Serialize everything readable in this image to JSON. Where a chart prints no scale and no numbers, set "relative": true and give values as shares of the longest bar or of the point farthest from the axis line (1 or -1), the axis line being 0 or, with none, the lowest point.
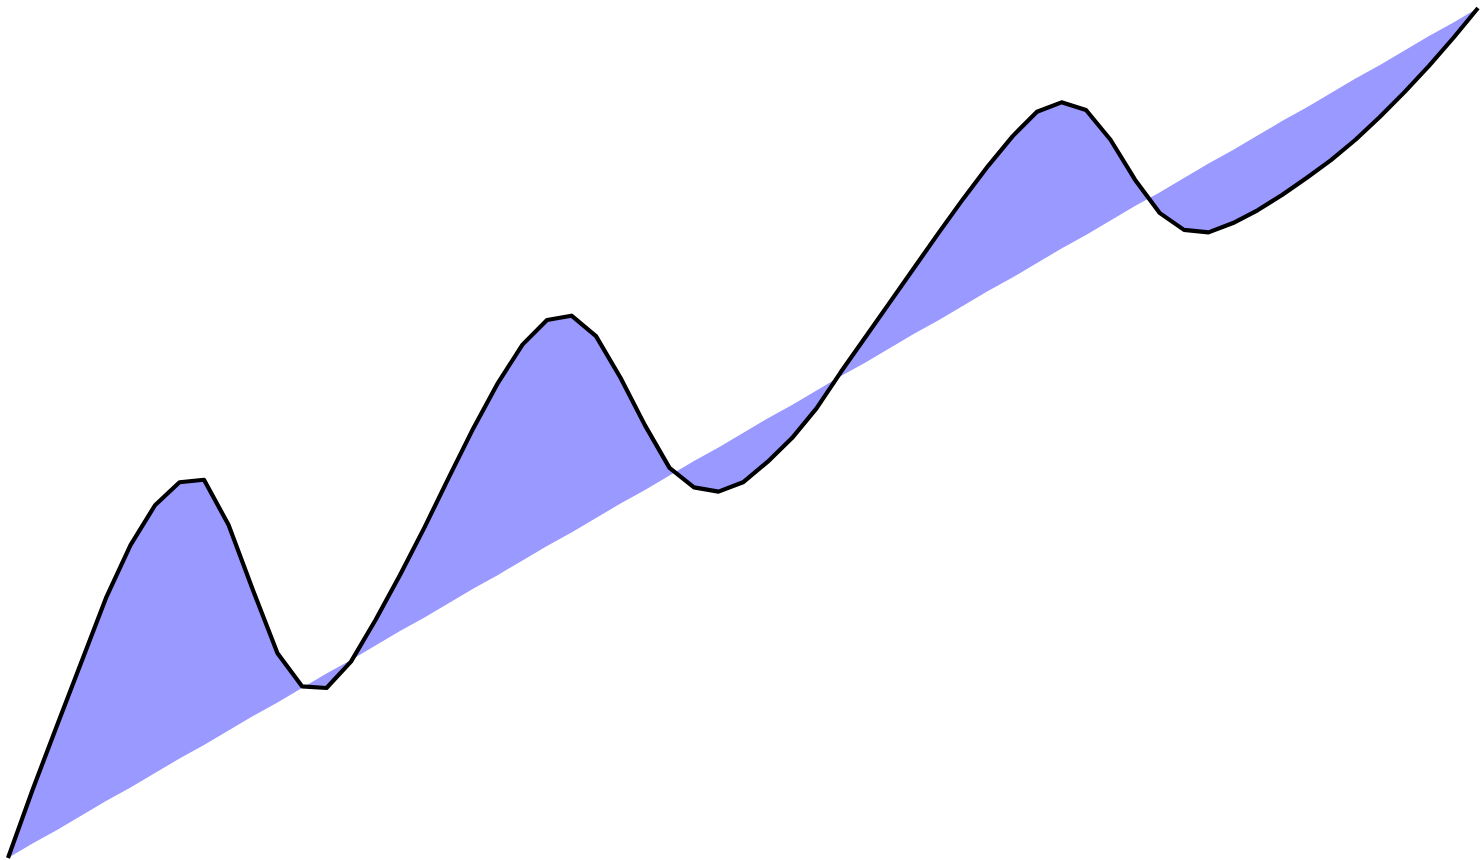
{
  "chart_data": {
    "type": "line",
    "relative": true,
    "categories": [
      null,
      null,
      null,
      null,
      null,
      null,
      null,
      null,
      null,
      null,
      null,
      null,
      null,
      null,
      null,
      null,
      null,
      null,
      null,
      null,
      null,
      null,
      null,
      null,
      null,
      null,
      null,
      null,
      null,
      null,
      null,
      null,
      null,
      null,
      null,
      null,
      null,
      null,
      null,
      null,
      null,
      null,
      null,
      null,
      null,
      null,
      null,
      null,
      null,
      null,
      null,
      null,
      null,
      null,
      null,
      null,
      null,
      null,
      null,
      null,
      null
    ],
    "series": [
      {
        "color": "#000000",
        "values": [
          0,
          0.08,
          0.156,
          0.231,
          0.306,
          0.368,
          0.415,
          0.442,
          0.445,
          0.392,
          0.315,
          0.241,
          0.202,
          0.2,
          0.231,
          0.28,
          0.333,
          0.389,
          0.448,
          0.506,
          0.559,
          0.604,
          0.633,
          0.638,
          0.614,
          0.565,
          0.509,
          0.459,
          0.436,
          0.431,
          0.442,
          0.466,
          0.494,
          0.529,
          0.572,
          0.613,
          0.654,
          0.695,
          0.736,
          0.776,
          0.814,
          0.849,
          0.878,
          0.889,
          0.88,
          0.845,
          0.798,
          0.759,
          0.739,
          0.736,
          0.747,
          0.762,
          0.78,
          0.8,
          0.821,
          0.845,
          0.872,
          0.901,
          0.932,
          0.965,
          1
        ],
        "lower": [
          0,
          0.017,
          0.033,
          0.05,
          0.067,
          0.083,
          0.1,
          0.117,
          0.133,
          0.15,
          0.167,
          0.183,
          0.2,
          0.217,
          0.233,
          0.25,
          0.267,
          0.283,
          0.3,
          0.317,
          0.333,
          0.35,
          0.367,
          0.383,
          0.4,
          0.417,
          0.433,
          0.45,
          0.467,
          0.483,
          0.5,
          0.517,
          0.533,
          0.55,
          0.567,
          0.583,
          0.6,
          0.617,
          0.633,
          0.65,
          0.667,
          0.683,
          0.7,
          0.717,
          0.733,
          0.75,
          0.767,
          0.783,
          0.8,
          0.817,
          0.833,
          0.85,
          0.867,
          0.883,
          0.9,
          0.917,
          0.933,
          0.95,
          0.967,
          0.983,
          1
        ],
        "upper": [
          0,
          0.08,
          0.156,
          0.231,
          0.306,
          0.368,
          0.415,
          0.442,
          0.445,
          0.392,
          0.315,
          0.241,
          0.202,
          0.2,
          0.231,
          0.28,
          0.333,
          0.389,
          0.448,
          0.506,
          0.559,
          0.604,
          0.633,
          0.638,
          0.614,
          0.565,
          0.509,
          0.459,
          0.436,
          0.431,
          0.442,
          0.466,
          0.494,
          0.529,
          0.572,
          0.613,
          0.654,
          0.695,
          0.736,
          0.776,
          0.814,
          0.849,
          0.878,
          0.889,
          0.88,
          0.845,
          0.798,
          0.759,
          0.739,
          0.736,
          0.747,
          0.762,
          0.78,
          0.8,
          0.821,
          0.845,
          0.872,
          0.901,
          0.932,
          0.965,
          1
        ]
      }
    ]
  }
}
